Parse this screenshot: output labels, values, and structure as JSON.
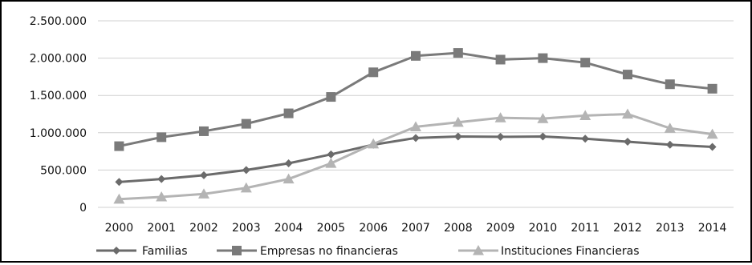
{
  "chart_data": {
    "type": "line",
    "title": "",
    "xlabel": "",
    "ylabel": "",
    "categories": [
      "2000",
      "2001",
      "2002",
      "2003",
      "2004",
      "2005",
      "2006",
      "2007",
      "2008",
      "2009",
      "2010",
      "2011",
      "2012",
      "2013",
      "2014"
    ],
    "ylim": [
      0,
      2500000
    ],
    "yticks": [
      0,
      500000,
      1000000,
      1500000,
      2000000,
      2500000
    ],
    "ytick_labels": [
      "0",
      "500.000",
      "1.000.000",
      "1.500.000",
      "2.000.000",
      "2.500.000"
    ],
    "grid": "horizontal",
    "legend_position": "bottom",
    "series": [
      {
        "name": "Familias",
        "marker": "diamond",
        "color": "#6b6b6b",
        "values": [
          340000,
          380000,
          430000,
          500000,
          590000,
          710000,
          840000,
          930000,
          950000,
          945000,
          950000,
          920000,
          880000,
          840000,
          810000
        ]
      },
      {
        "name": "Empresas no financieras",
        "marker": "square",
        "color": "#7a7a7a",
        "values": [
          820000,
          940000,
          1020000,
          1120000,
          1260000,
          1480000,
          1810000,
          2030000,
          2070000,
          1980000,
          2000000,
          1940000,
          1780000,
          1650000,
          1590000
        ]
      },
      {
        "name": "Instituciones Financieras",
        "marker": "triangle",
        "color": "#b4b4b4",
        "values": [
          110000,
          140000,
          180000,
          260000,
          380000,
          590000,
          850000,
          1080000,
          1140000,
          1200000,
          1190000,
          1230000,
          1250000,
          1060000,
          980000
        ]
      }
    ]
  }
}
